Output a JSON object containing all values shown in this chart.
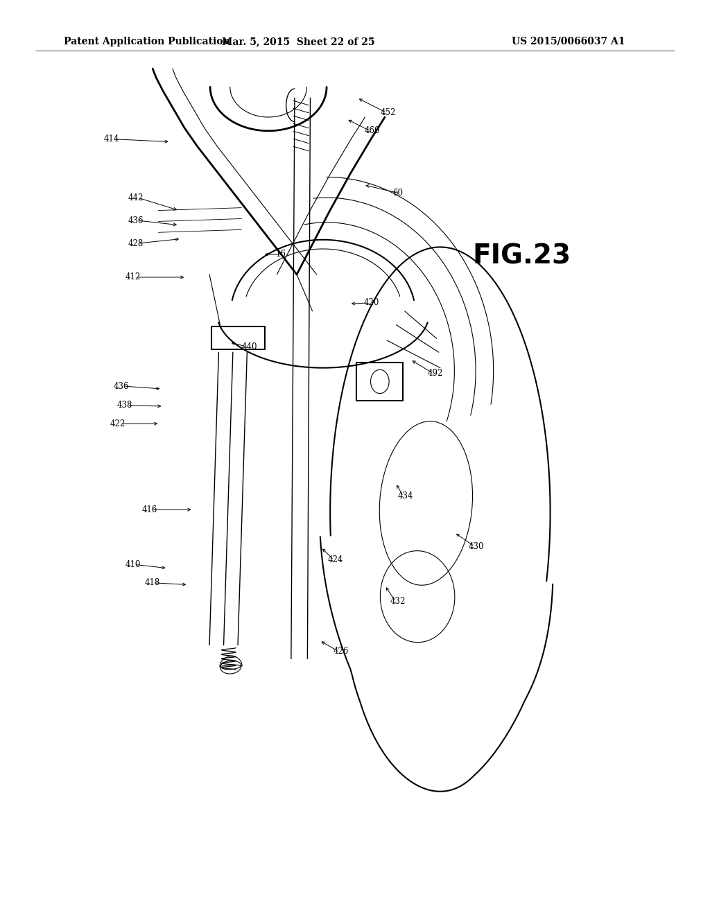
{
  "background_color": "#ffffff",
  "header_left": "Patent Application Publication",
  "header_center": "Mar. 5, 2015  Sheet 22 of 25",
  "header_right": "US 2015/0066037 A1",
  "fig_label": "FIG.23",
  "header_fontsize": 10,
  "fig_label_fontsize": 28
}
